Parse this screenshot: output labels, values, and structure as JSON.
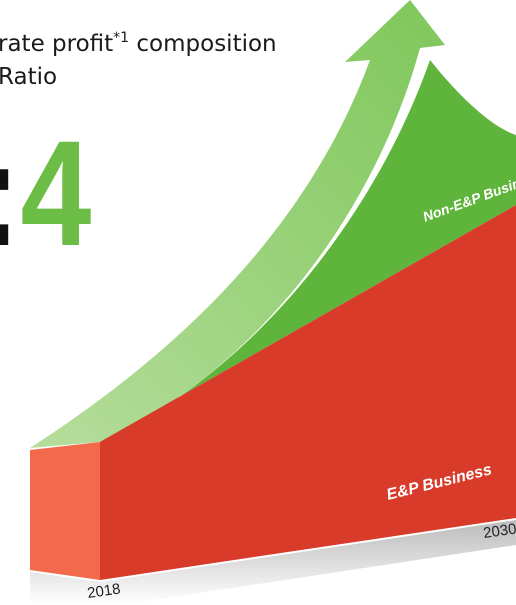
{
  "header": {
    "title_prefix": "rate profit",
    "footnote_mark": "*1",
    "title_suffix": " composition",
    "line2": "Ratio"
  },
  "ratio": {
    "colon": ":",
    "value": "4"
  },
  "labels": {
    "upper": "Non-E&P Business",
    "lower": "E&P Business",
    "start_year": "2018",
    "end_year": "2030"
  }
}
